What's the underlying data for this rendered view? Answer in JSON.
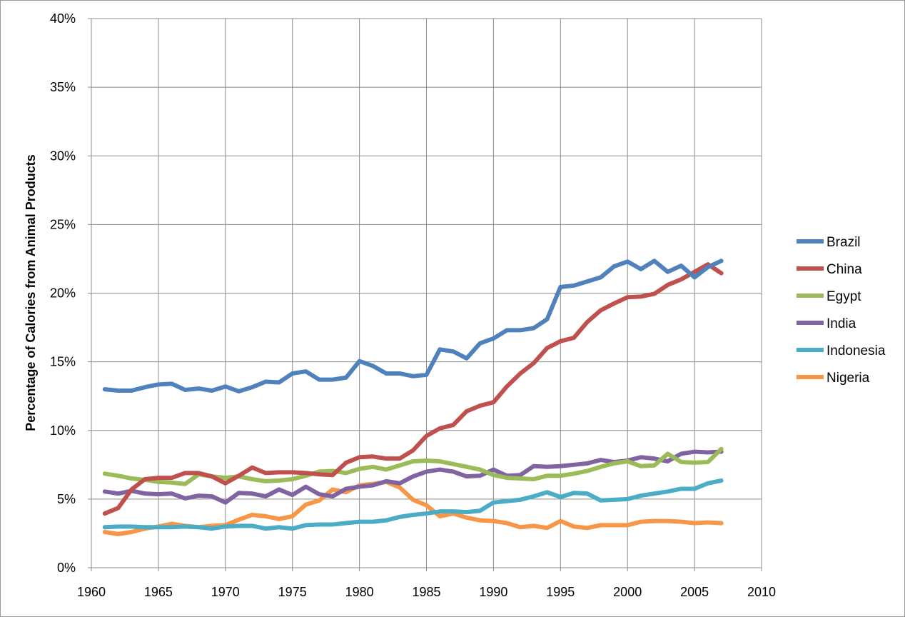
{
  "chart_data": {
    "type": "line",
    "title": "",
    "xlabel": "",
    "ylabel": "Percentage of Calories from Animal Products",
    "xlim": [
      1960,
      2010
    ],
    "ylim": [
      0,
      40
    ],
    "x_ticks": [
      "1960",
      "1965",
      "1970",
      "1975",
      "1980",
      "1985",
      "1990",
      "1995",
      "2000",
      "2005",
      "2010"
    ],
    "y_ticks": [
      "0%",
      "5%",
      "10%",
      "15%",
      "20%",
      "25%",
      "30%",
      "35%",
      "40%"
    ],
    "grid": true,
    "legend_position": "right",
    "x": [
      1961,
      1962,
      1963,
      1964,
      1965,
      1966,
      1967,
      1968,
      1969,
      1970,
      1971,
      1972,
      1973,
      1974,
      1975,
      1976,
      1977,
      1978,
      1979,
      1980,
      1981,
      1982,
      1983,
      1984,
      1985,
      1986,
      1987,
      1988,
      1989,
      1990,
      1991,
      1992,
      1993,
      1994,
      1995,
      1996,
      1997,
      1998,
      1999,
      2000,
      2001,
      2002,
      2003,
      2004,
      2005,
      2006,
      2007
    ],
    "series": [
      {
        "name": "Brazil",
        "color": "#4F81BD",
        "values": [
          13.0,
          12.9,
          12.9,
          13.15,
          13.35,
          13.4,
          12.95,
          13.05,
          12.9,
          13.2,
          12.85,
          13.15,
          13.55,
          13.5,
          14.15,
          14.3,
          13.7,
          13.7,
          13.85,
          15.05,
          14.7,
          14.15,
          14.15,
          13.95,
          14.05,
          15.9,
          15.75,
          15.25,
          16.35,
          16.7,
          17.3,
          17.3,
          17.45,
          18.1,
          20.45,
          20.55,
          20.85,
          21.15,
          21.95,
          22.3,
          21.75,
          22.35,
          21.55,
          22.0,
          21.15,
          21.9,
          22.35
        ]
      },
      {
        "name": "China",
        "color": "#C0504D",
        "values": [
          3.95,
          4.35,
          5.7,
          6.45,
          6.55,
          6.55,
          6.9,
          6.9,
          6.65,
          6.15,
          6.7,
          7.3,
          6.9,
          6.95,
          6.95,
          6.9,
          6.8,
          6.75,
          7.65,
          8.05,
          8.1,
          7.95,
          7.95,
          8.55,
          9.6,
          10.15,
          10.4,
          11.4,
          11.8,
          12.05,
          13.2,
          14.15,
          14.9,
          16.0,
          16.5,
          16.75,
          17.9,
          18.75,
          19.25,
          19.7,
          19.75,
          19.95,
          20.6,
          21.0,
          21.55,
          22.1,
          21.45
        ]
      },
      {
        "name": "Egypt",
        "color": "#9BBB59",
        "values": [
          6.85,
          6.7,
          6.5,
          6.4,
          6.25,
          6.2,
          6.1,
          6.8,
          6.65,
          6.55,
          6.65,
          6.45,
          6.3,
          6.35,
          6.45,
          6.7,
          7.0,
          7.05,
          6.9,
          7.2,
          7.35,
          7.15,
          7.45,
          7.75,
          7.8,
          7.75,
          7.55,
          7.35,
          7.15,
          6.75,
          6.55,
          6.5,
          6.45,
          6.7,
          6.7,
          6.85,
          7.05,
          7.35,
          7.6,
          7.75,
          7.4,
          7.45,
          8.3,
          7.7,
          7.65,
          7.7,
          8.65
        ]
      },
      {
        "name": "India",
        "color": "#8064A2",
        "values": [
          5.55,
          5.4,
          5.6,
          5.4,
          5.35,
          5.4,
          5.05,
          5.25,
          5.2,
          4.75,
          5.45,
          5.4,
          5.2,
          5.7,
          5.3,
          5.9,
          5.35,
          5.2,
          5.75,
          5.9,
          6.0,
          6.3,
          6.15,
          6.65,
          7.0,
          7.15,
          7.0,
          6.65,
          6.7,
          7.15,
          6.7,
          6.75,
          7.4,
          7.35,
          7.4,
          7.5,
          7.6,
          7.85,
          7.7,
          7.8,
          8.05,
          7.95,
          7.75,
          8.3,
          8.45,
          8.4,
          8.45
        ]
      },
      {
        "name": "Indonesia",
        "color": "#4BACC6",
        "values": [
          2.95,
          3.0,
          3.0,
          2.95,
          2.95,
          2.95,
          3.0,
          2.95,
          2.85,
          3.0,
          3.05,
          3.05,
          2.85,
          2.95,
          2.85,
          3.1,
          3.15,
          3.15,
          3.25,
          3.35,
          3.35,
          3.45,
          3.7,
          3.85,
          3.95,
          4.1,
          4.1,
          4.05,
          4.15,
          4.75,
          4.85,
          4.95,
          5.2,
          5.5,
          5.15,
          5.45,
          5.4,
          4.9,
          4.95,
          5.0,
          5.25,
          5.4,
          5.55,
          5.75,
          5.75,
          6.15,
          6.35
        ]
      },
      {
        "name": "Nigeria",
        "color": "#F79646",
        "values": [
          2.6,
          2.45,
          2.6,
          2.85,
          3.0,
          3.2,
          3.05,
          2.95,
          3.05,
          3.1,
          3.5,
          3.85,
          3.75,
          3.55,
          3.75,
          4.6,
          4.9,
          5.7,
          5.5,
          6.0,
          6.1,
          6.25,
          5.85,
          4.95,
          4.55,
          3.75,
          3.95,
          3.65,
          3.45,
          3.4,
          3.25,
          2.95,
          3.05,
          2.9,
          3.4,
          3.0,
          2.9,
          3.1,
          3.1,
          3.1,
          3.35,
          3.4,
          3.4,
          3.35,
          3.25,
          3.3,
          3.25
        ]
      }
    ]
  }
}
